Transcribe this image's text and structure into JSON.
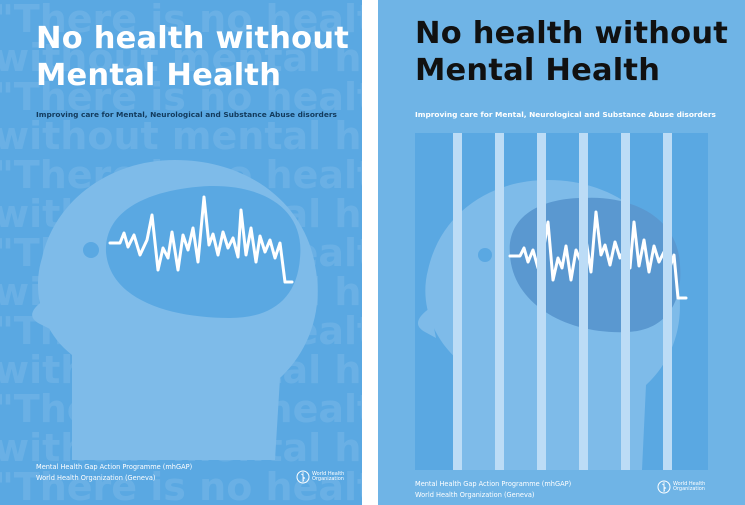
{
  "posters": [
    {
      "title_line1": "No health without",
      "title_line2": "Mental Health",
      "subtitle": "Improving care for Mental, Neurological and Substance Abuse disorders",
      "footer_line1": "Mental Health Gap Action Programme (mhGAP)",
      "footer_line2": "World Health Organization (Geneva)",
      "logo_line1": "World Health",
      "logo_line2": "Organization",
      "logo_icon": "who-emblem-icon",
      "background_color": "#5aa8e2"
    },
    {
      "title_line1": "No health without",
      "title_line2": "Mental Health",
      "subtitle": "Improving care for Mental, Neurological and Substance Abuse disorders",
      "footer_line1": "Mental Health Gap Action Programme (mhGAP)",
      "footer_line2": "World Health Organization (Geneva)",
      "logo_line1": "World Health",
      "logo_line2": "Organization",
      "logo_icon": "who-emblem-icon",
      "background_color": "#6fb4e6"
    }
  ],
  "watermark_lines": [
    "\"There is no health",
    "without mental health\"",
    "\"There is no health",
    "without mental health\"",
    "\"There is no health",
    "without mental health\"",
    "\"There is no health",
    "without mental health\"",
    "\"There is no health",
    "without mental health\"",
    "\"There is no health",
    "without mental health\"",
    "\"There is no health"
  ]
}
